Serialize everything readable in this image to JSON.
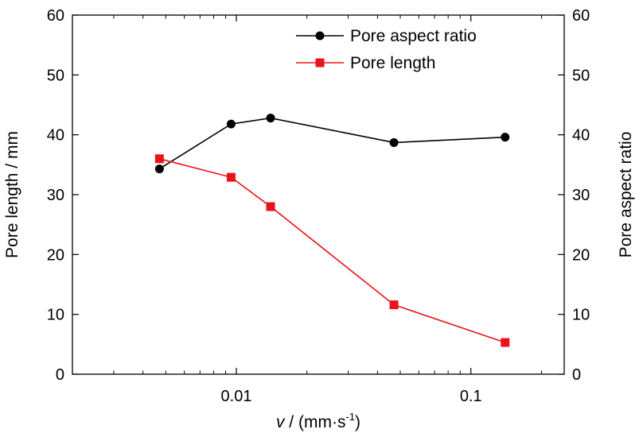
{
  "chart_data": {
    "type": "line",
    "x_scale": "log",
    "xlim": [
      0.002,
      0.25
    ],
    "ylim_left": [
      0,
      60
    ],
    "ylim_right": [
      0,
      60
    ],
    "xticks": [
      0.01,
      0.1
    ],
    "xtick_labels": [
      "0.01",
      "0.1"
    ],
    "yticks": [
      0,
      10,
      20,
      30,
      40,
      50,
      60
    ],
    "ytick_labels": [
      "0",
      "10",
      "20",
      "30",
      "40",
      "50",
      "60"
    ],
    "xlabel_var": "v",
    "xlabel_rest": " / (mm·s",
    "xlabel_sup": "-1",
    "xlabel_close": ")",
    "ylabel_left": "Pore length / mm",
    "ylabel_right": "Pore aspect ratio",
    "legend_position": "top-right",
    "grid": false,
    "series": [
      {
        "name": "Pore aspect ratio",
        "axis": "right",
        "color": "#000000",
        "marker": "circle",
        "x": [
          0.0047,
          0.0095,
          0.014,
          0.047,
          0.14
        ],
        "y": [
          34.3,
          41.8,
          42.8,
          38.7,
          39.6
        ]
      },
      {
        "name": "Pore length",
        "axis": "left",
        "color": "#e8141a",
        "marker": "square",
        "x": [
          0.0047,
          0.0095,
          0.014,
          0.047,
          0.14
        ],
        "y": [
          36.0,
          32.9,
          28.0,
          11.6,
          5.3
        ]
      }
    ]
  }
}
